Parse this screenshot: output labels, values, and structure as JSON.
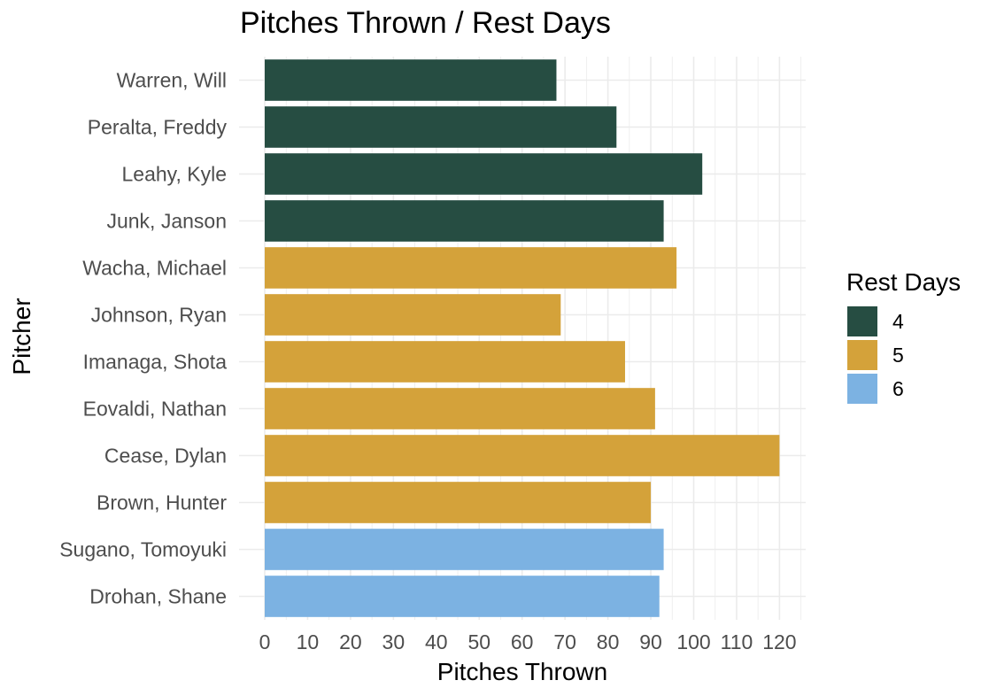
{
  "chart_data": {
    "type": "bar",
    "orientation": "horizontal",
    "title": "Pitches Thrown / Rest Days",
    "xlabel": "Pitches Thrown",
    "ylabel": "Pitcher",
    "xlim": [
      0,
      125
    ],
    "x_ticks": [
      0,
      10,
      20,
      30,
      40,
      50,
      60,
      70,
      80,
      90,
      100,
      110,
      120
    ],
    "grid": true,
    "legend": {
      "title": "Rest Days",
      "position": "right",
      "entries": [
        {
          "label": "4",
          "color": "#264d42"
        },
        {
          "label": "5",
          "color": "#d4a23a"
        },
        {
          "label": "6",
          "color": "#7cb2e2"
        }
      ]
    },
    "categories": [
      "Warren, Will",
      "Peralta, Freddy",
      "Leahy, Kyle",
      "Junk, Janson",
      "Wacha, Michael",
      "Johnson, Ryan",
      "Imanaga, Shota",
      "Eovaldi, Nathan",
      "Cease, Dylan",
      "Brown, Hunter",
      "Sugano, Tomoyuki",
      "Drohan, Shane"
    ],
    "values": [
      68,
      82,
      102,
      93,
      96,
      69,
      84,
      91,
      120,
      90,
      93,
      92
    ],
    "rest_days": [
      "4",
      "4",
      "4",
      "4",
      "5",
      "5",
      "5",
      "5",
      "5",
      "5",
      "6",
      "6"
    ]
  }
}
